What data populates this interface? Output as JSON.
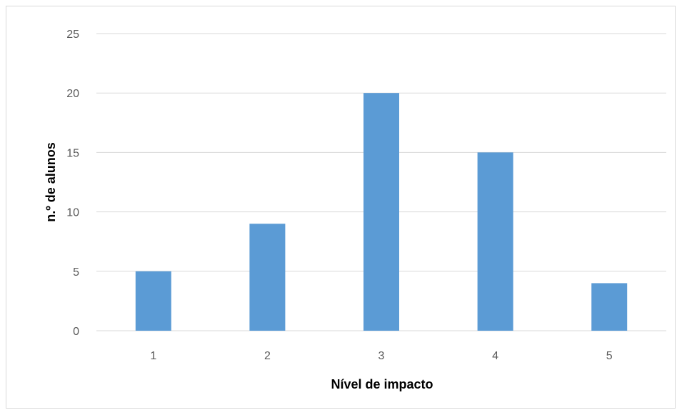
{
  "chart_data": {
    "type": "bar",
    "title": "",
    "xlabel": "Nível de impacto",
    "ylabel": "n.º de alunos",
    "categories": [
      "1",
      "2",
      "3",
      "4",
      "5"
    ],
    "values": [
      5,
      9,
      20,
      15,
      4
    ],
    "ylim": [
      0,
      25
    ],
    "yticks": [
      0,
      5,
      10,
      15,
      20,
      25
    ],
    "grid": true,
    "legend": "none",
    "colors": {
      "bar": "#5b9bd5",
      "grid": "#d9d9d9",
      "axis": "#d9d9d9",
      "tick_text": "#595959"
    }
  }
}
